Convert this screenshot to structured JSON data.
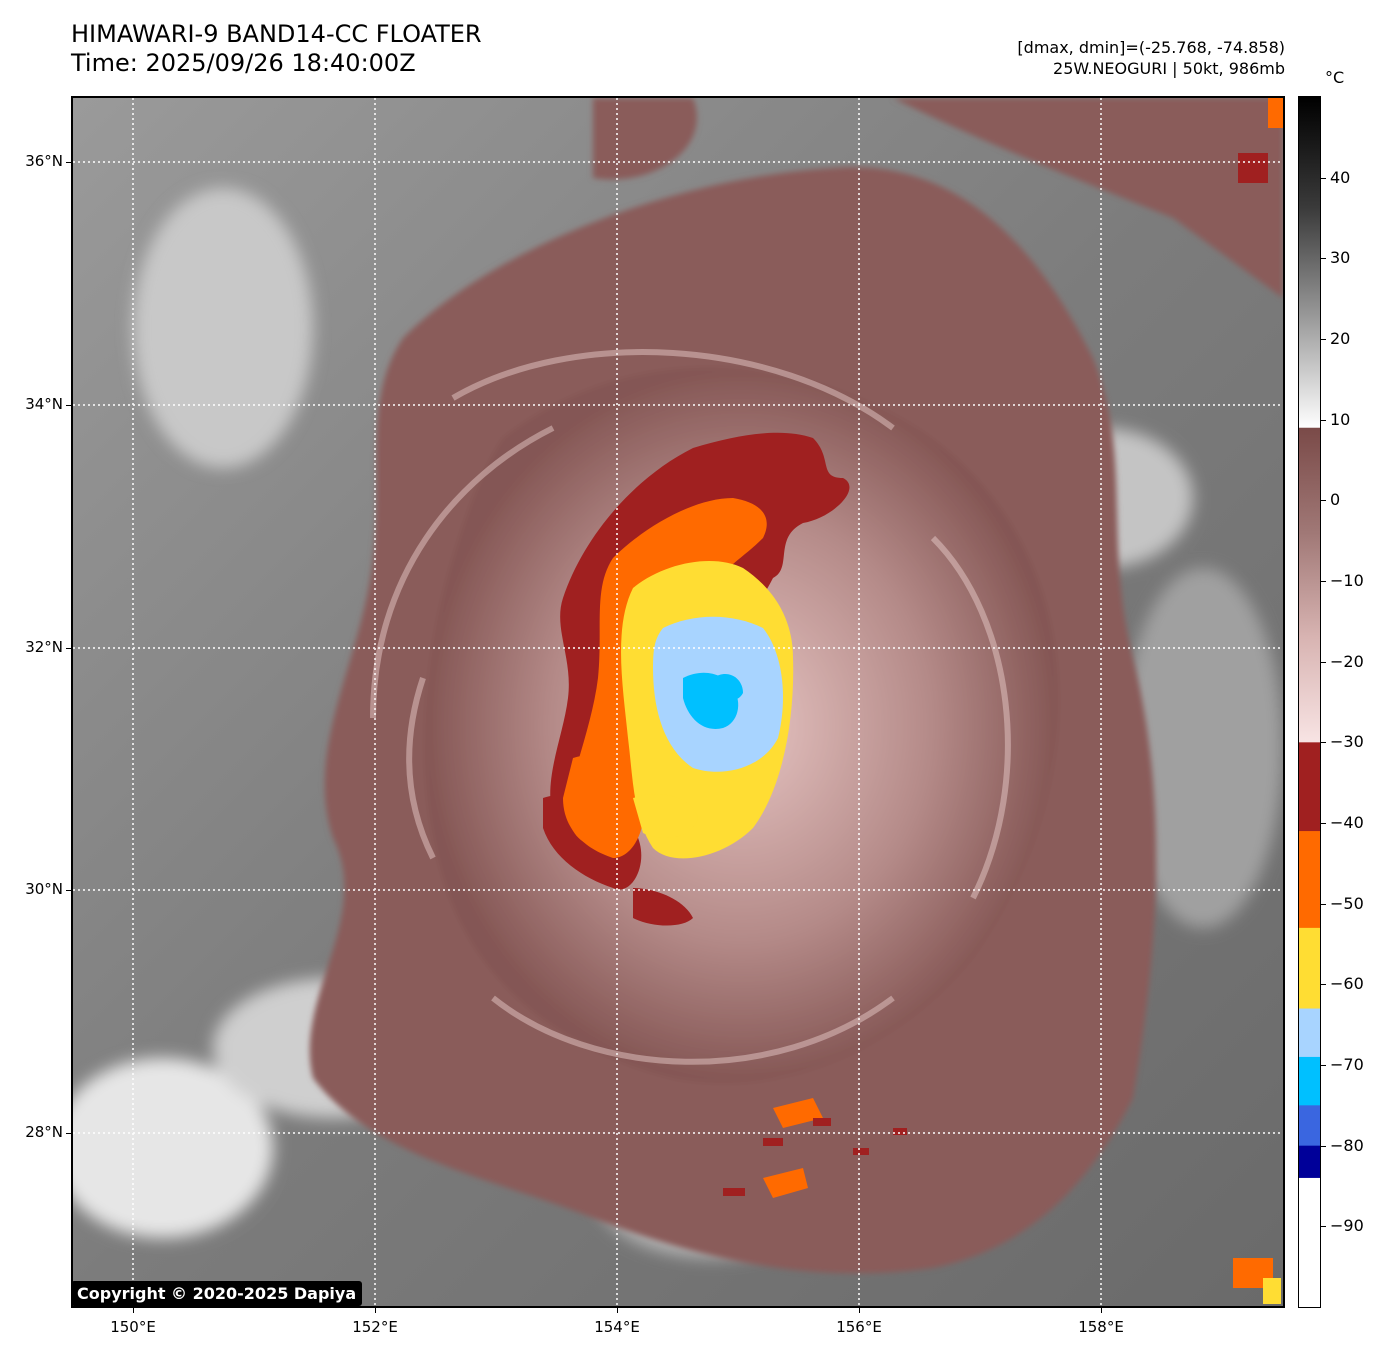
{
  "header": {
    "title_line1": "HIMAWARI-9 BAND14-CC FLOATER",
    "title_line2": "Time: 2025/09/26 18:40:00Z",
    "range_text": "[dmax, dmin]=(-25.768, -74.858)",
    "storm_text": "25W.NEOGURI | 50kt, 986mb"
  },
  "map": {
    "lat_labels": [
      "36°N",
      "34°N",
      "32°N",
      "30°N",
      "28°N"
    ],
    "lon_labels": [
      "150°E",
      "152°E",
      "154°E",
      "156°E",
      "158°E"
    ],
    "lat_values": [
      36,
      34,
      32,
      30,
      28
    ],
    "lon_values": [
      150,
      152,
      154,
      156,
      158
    ],
    "extent": {
      "lon_min": 149.35,
      "lon_max": 159.4,
      "lat_min": 26.5,
      "lat_max": 36.55
    },
    "gridlines": "dotted white",
    "copyright": "Copyright © 2020-2025 Dapiya"
  },
  "colorbar": {
    "unit": "°C",
    "tick_labels": [
      "40",
      "30",
      "20",
      "10",
      "0",
      "−10",
      "−20",
      "−30",
      "−40",
      "−50",
      "−60",
      "−70",
      "−80",
      "−90"
    ],
    "tick_values": [
      40,
      30,
      20,
      10,
      0,
      -10,
      -20,
      -30,
      -40,
      -50,
      -60,
      -70,
      -80,
      -90
    ],
    "range": [
      -100,
      50
    ],
    "segments": [
      {
        "from": 50,
        "to": 9,
        "kind": "gradient",
        "colors": [
          "#000000",
          "#3a3a3a",
          "#9a9a9a",
          "#ffffff"
        ]
      },
      {
        "from": 9,
        "to": -30,
        "kind": "gradient",
        "colors": [
          "#7a4a48",
          "#a07876",
          "#d8b4b2",
          "#f8e4e4"
        ]
      },
      {
        "from": -30,
        "to": -41,
        "kind": "solid",
        "color": "#a02020"
      },
      {
        "from": -41,
        "to": -53,
        "kind": "solid",
        "color": "#ff6a00"
      },
      {
        "from": -53,
        "to": -63,
        "kind": "solid",
        "color": "#ffdd33"
      },
      {
        "from": -63,
        "to": -69,
        "kind": "solid",
        "color": "#a8d4ff"
      },
      {
        "from": -69,
        "to": -75,
        "kind": "solid",
        "color": "#00c0ff"
      },
      {
        "from": -75,
        "to": -80,
        "kind": "solid",
        "color": "#3a66e0"
      },
      {
        "from": -80,
        "to": -84,
        "kind": "solid",
        "color": "#000099"
      },
      {
        "from": -84,
        "to": -100,
        "kind": "solid",
        "color": "#ffffff"
      }
    ]
  },
  "colors": {
    "cloud_brown": "#8a5c5a",
    "cloud_pink": "#e8c8c6",
    "dark_red": "#a02020",
    "orange": "#ff6a00",
    "yellow": "#ffdd33",
    "light_blue": "#a8d4ff",
    "cyan": "#00c0ff"
  }
}
